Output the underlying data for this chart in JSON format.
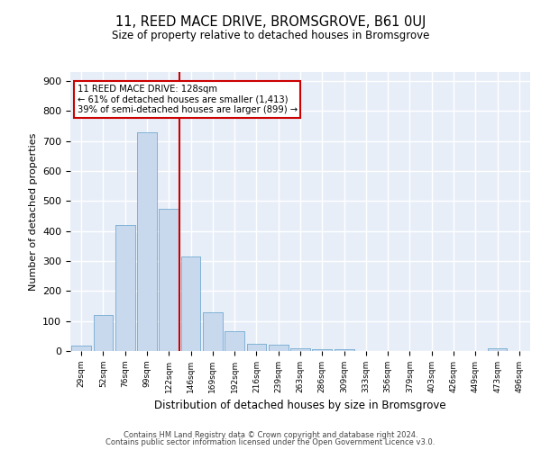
{
  "title": "11, REED MACE DRIVE, BROMSGROVE, B61 0UJ",
  "subtitle": "Size of property relative to detached houses in Bromsgrove",
  "xlabel": "Distribution of detached houses by size in Bromsgrove",
  "ylabel": "Number of detached properties",
  "bar_color": "#c8d9ee",
  "bar_edge_color": "#7aafd4",
  "background_color": "#e8eef8",
  "grid_color": "#ffffff",
  "categories": [
    "29sqm",
    "52sqm",
    "76sqm",
    "99sqm",
    "122sqm",
    "146sqm",
    "169sqm",
    "192sqm",
    "216sqm",
    "239sqm",
    "263sqm",
    "286sqm",
    "309sqm",
    "333sqm",
    "356sqm",
    "379sqm",
    "403sqm",
    "426sqm",
    "449sqm",
    "473sqm",
    "496sqm"
  ],
  "values": [
    18,
    120,
    420,
    730,
    475,
    315,
    130,
    65,
    23,
    20,
    8,
    5,
    5,
    0,
    0,
    0,
    0,
    0,
    0,
    8,
    0
  ],
  "ylim": [
    0,
    930
  ],
  "yticks": [
    0,
    100,
    200,
    300,
    400,
    500,
    600,
    700,
    800,
    900
  ],
  "property_line_category_index": 4,
  "annotation_line1": "11 REED MACE DRIVE: 128sqm",
  "annotation_line2": "← 61% of detached houses are smaller (1,413)",
  "annotation_line3": "39% of semi-detached houses are larger (899) →",
  "annotation_box_color": "#ffffff",
  "annotation_box_edge": "#cc0000",
  "vline_color": "#cc0000",
  "footer_line1": "Contains HM Land Registry data © Crown copyright and database right 2024.",
  "footer_line2": "Contains public sector information licensed under the Open Government Licence v3.0."
}
